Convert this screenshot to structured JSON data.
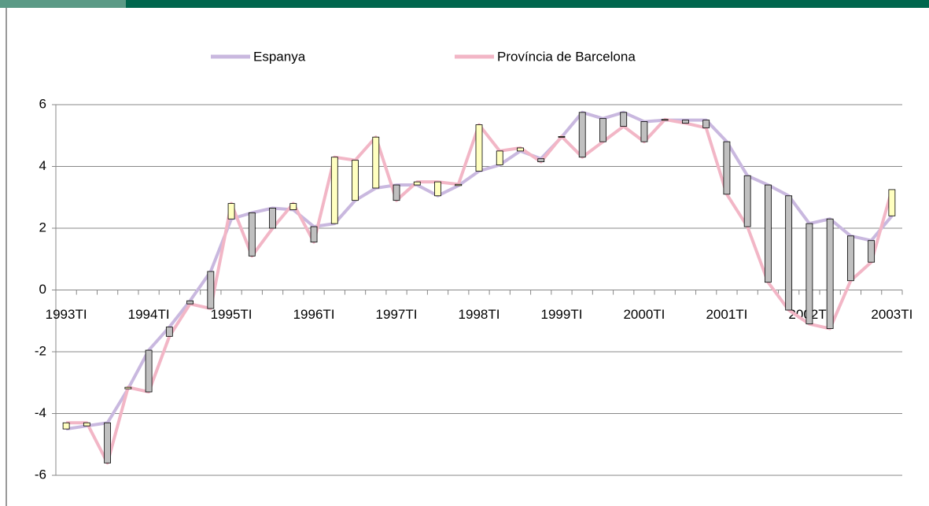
{
  "chart_data": {
    "type": "line",
    "categories": [
      "1993TI",
      null,
      null,
      null,
      "1994TI",
      null,
      null,
      null,
      "1995TI",
      null,
      null,
      null,
      "1996TI",
      null,
      null,
      null,
      "1997TI",
      null,
      null,
      null,
      "1998TI",
      null,
      null,
      null,
      "1999TI",
      null,
      null,
      null,
      "2000TI",
      null,
      null,
      null,
      "2001TI",
      null,
      null,
      null,
      "2002TI",
      null,
      null,
      null,
      "2003TI"
    ],
    "series": [
      {
        "name": "Espanya",
        "color": "#c9b8df",
        "values": [
          -4.5,
          -4.4,
          -4.3,
          -3.2,
          -1.95,
          -1.2,
          -0.35,
          0.6,
          2.3,
          2.5,
          2.65,
          2.6,
          2.05,
          2.15,
          2.9,
          3.3,
          3.4,
          3.4,
          3.05,
          3.38,
          3.85,
          4.05,
          4.5,
          4.25,
          4.95,
          5.75,
          5.55,
          5.75,
          5.45,
          5.5,
          5.5,
          5.5,
          4.8,
          3.7,
          3.4,
          3.05,
          2.15,
          2.3,
          1.75,
          1.6,
          2.4
        ]
      },
      {
        "name": "Província de Barcelona",
        "color": "#f2b6c6",
        "values": [
          -4.3,
          -4.3,
          -5.6,
          -3.15,
          -3.3,
          -1.5,
          -0.45,
          -0.6,
          2.8,
          1.1,
          2.0,
          2.8,
          1.55,
          4.3,
          4.2,
          4.95,
          2.9,
          3.5,
          3.5,
          3.42,
          5.35,
          4.5,
          4.6,
          4.15,
          4.97,
          4.3,
          4.8,
          5.3,
          4.8,
          5.52,
          5.4,
          5.25,
          3.1,
          2.05,
          0.25,
          -0.65,
          -1.1,
          -1.25,
          0.3,
          0.9,
          3.25
        ]
      }
    ],
    "up_bar_color": "#ffffc0",
    "down_bar_color": "#c0c0c0",
    "ylim": [
      -6,
      6
    ],
    "yticks": [
      -6,
      -4,
      -2,
      0,
      2,
      4,
      6
    ],
    "grid": true,
    "legend": "top"
  }
}
